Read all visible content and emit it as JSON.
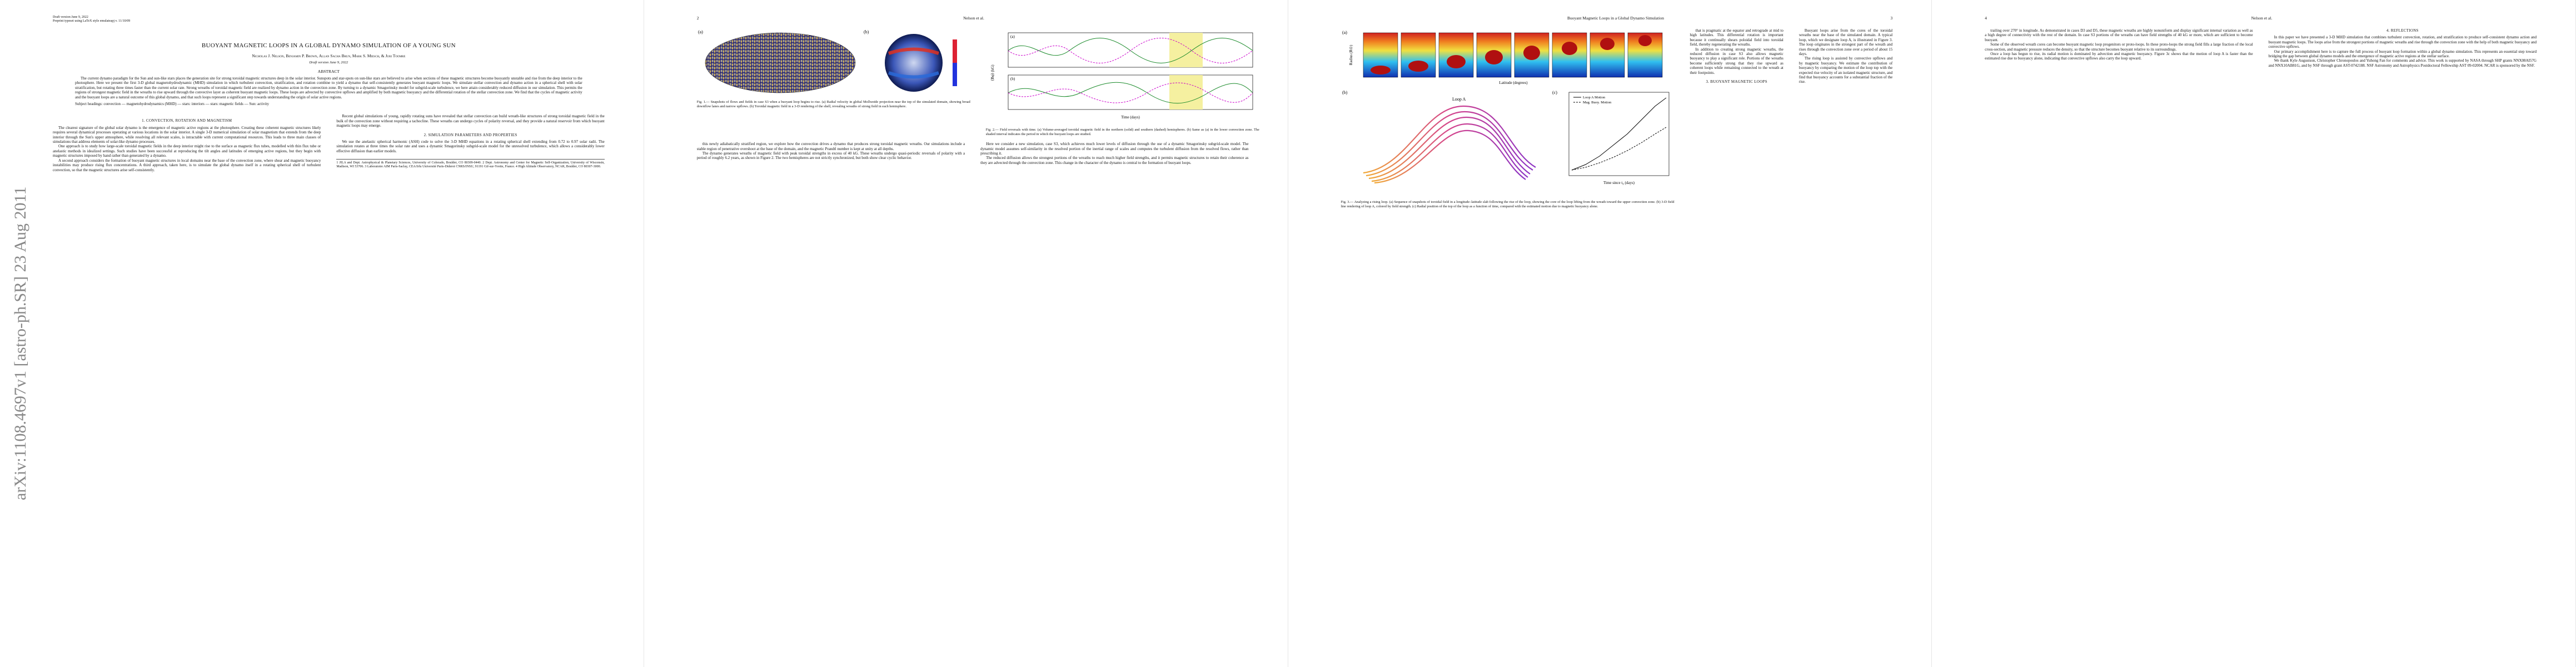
{
  "arxiv_stamp": "arXiv:1108.4697v1  [astro-ph.SR]  23 Aug 2011",
  "page1": {
    "draft_line": "Draft version June 9, 2022",
    "preprint_line": "Preprint typeset using LaTeX style emulateapj v. 11/10/09",
    "title": "BUOYANT MAGNETIC LOOPS IN A GLOBAL DYNAMO SIMULATION OF A YOUNG SUN",
    "authors": "Nicholas J. Nelson, Benjamin P. Brown, Allan Sacha Brun, Mark S. Miesch, & Juri Toomre",
    "date": "Draft version June 9, 2022",
    "abstract_heading": "ABSTRACT",
    "abstract": "The current dynamo paradigm for the Sun and sun-like stars places the generation site for strong toroidal magnetic structures deep in the solar interior. Sunspots and star-spots on sun-like stars are believed to arise when sections of these magnetic structures become buoyantly unstable and rise from the deep interior to the photosphere. Here we present the first 3-D global magnetohydrodynamic (MHD) simulation in which turbulent convection, stratification, and rotation combine to yield a dynamo that self-consistently generates buoyant magnetic loops. We simulate stellar convection and dynamo action in a spherical shell with solar stratification, but rotating three times faster than the current solar rate. Strong wreaths of toroidal magnetic field are realized by dynamo action in the convection zone. By turning to a dynamic Smagorinsky model for subgrid-scale turbulence, we here attain considerably reduced diffusion in our simulation. This permits the regions of strongest magnetic field in the wreaths to rise upward through the convective layer as coherent buoyant magnetic loops. These loops are advected by convective upflows and amplified by both magnetic buoyancy and the differential rotation of the stellar convection zone. We find that the cycles of magnetic activity and the buoyant loops are a natural outcome of this global dynamo, and that such loops represent a significant step towards understanding the origin of solar active regions.",
    "keywords": "Subject headings: convection — magnetohydrodynamics (MHD) — stars: interiors — stars: magnetic fields — Sun: activity",
    "body": [
      {
        "heading": "1. CONVECTION, ROTATION AND MAGNETISM"
      },
      {
        "text": "The clearest signature of the global solar dynamo is the emergence of magnetic active regions at the photosphere. Creating these coherent magnetic structures likely requires several dynamical processes operating at various locations in the solar interior. A single 3-D numerical simulation of solar magnetism that extends from the deep interior through the Sun's upper atmosphere, while resolving all relevant scales, is intractable with current computational resources. This leads to three main classes of simulations that address elements of solar-like dynamo processes."
      },
      {
        "text": "One approach is to study how large-scale toroidal magnetic fields in the deep interior might rise to the surface as magnetic flux tubes, modelled with thin flux tube or anelastic methods in idealized settings. Such studies have been successful at reproducing the tilt angles and latitudes of emerging active regions, but they begin with magnetic structures imposed by hand rather than generated by a dynamo."
      },
      {
        "text": "A second approach considers the formation of buoyant magnetic structures in local domains near the base of the convection zone, where shear and magnetic buoyancy instabilities may produce rising flux concentrations. A third approach, taken here, is to simulate the global dynamo itself in a rotating spherical shell of turbulent convection, so that the magnetic structures arise self-consistently."
      },
      {
        "text": "Recent global simulations of young, rapidly rotating suns have revealed that stellar convection can build wreath-like structures of strong toroidal magnetic field in the bulk of the convection zone without requiring a tachocline. These wreaths can undergo cycles of polarity reversal, and they provide a natural reservoir from which buoyant magnetic loops may emerge."
      },
      {
        "heading": "2. SIMULATION PARAMETERS AND PROPERTIES"
      },
      {
        "text": "We use the anelastic spherical harmonic (ASH) code to solve the 3-D MHD equations in a rotating spherical shell extending from 0.72 to 0.97 solar radii. The simulation rotates at three times the solar rate and uses a dynamic Smagorinsky subgrid-scale model for the unresolved turbulence, which allows a considerably lower effective diffusion than earlier models."
      },
      {
        "footnote": "1 JILA and Dept. Astrophysical & Planetary Sciences, University of Colorado, Boulder, CO 80309-0440. 2 Dept. Astronomy and Center for Magnetic Self-Organization, University of Wisconsin, Madison, WI 53706. 3 Laboratoire AIM Paris-Saclay, CEA/Irfu Université Paris-Diderot CNRS/INSU, 91191 Gif-sur-Yvette, France. 4 High Altitude Observatory, NCAR, Boulder, CO 80307-3000."
      }
    ]
  },
  "page2": {
    "page_number": "2",
    "running_head": "Nelson et al.",
    "fig1_a": "(a)",
    "fig1_b": "(b)",
    "fig1_caption": "Fig. 1.— Snapshots of flows and fields in case S3 when a buoyant loop begins to rise. (a) Radial velocity in global Mollweide projection near the top of the simulated domain, showing broad downflow lanes and narrow upflows. (b) Toroidal magnetic field in a 3-D rendering of the shell, revealing wreaths of strong field in each hemisphere.",
    "fig2_a": "(a)",
    "fig2_b": "(b)",
    "fig2_ylabel": "⟨Bφ⟩ (kG)",
    "fig2_xlabel": "Time (days)",
    "fig2_caption": "Fig. 2.— Field reversals with time. (a) Volume-averaged toroidal magnetic field in the northern (solid) and southern (dashed) hemispheres. (b) Same as (a) in the lower convection zone. The shaded interval indicates the period in which the buoyant loops are studied.",
    "body": [
      {
        "text": "this newly adiabatically stratified region, we explore how the convection drives a dynamo that produces strong toroidal magnetic wreaths. Our simulations include a stable region of penetrative overshoot at the base of the domain, and the magnetic Prandtl number is kept at unity at all depths."
      },
      {
        "text": "The dynamo generates wreaths of magnetic field with peak toroidal strengths in excess of 40 kG. These wreaths undergo quasi-periodic reversals of polarity with a period of roughly 6.2 years, as shown in Figure 2. The two hemispheres are not strictly synchronized, but both show clear cyclic behavior."
      },
      {
        "text": "Here we consider a new simulation, case S3, which achieves much lower levels of diffusion through the use of a dynamic Smagorinsky subgrid-scale model. The dynamic model assumes self-similarity in the resolved portion of the inertial range of scales and computes the turbulent diffusion from the resolved flows, rather than prescribing it."
      },
      {
        "text": "The reduced diffusion allows the strongest portions of the wreaths to reach much higher field strengths, and it permits magnetic structures to retain their coherence as they are advected through the convection zone. This change in the character of the dynamo is central to the formation of buoyant loops."
      }
    ]
  },
  "page3": {
    "page_number": "3",
    "running_head": "Buoyant Magnetic Loops in a Global Dynamo Simulation",
    "fig3_a": "(a)",
    "fig3_b": "(b)",
    "fig3_c": "(c)",
    "fig3_ylabel": "Radius (R⊙)",
    "fig3_xlabel": "Time since t₀ (days)",
    "fig3_latitude": "Latitude (degrees)",
    "fig3_loop": "Loop A",
    "legend": [
      "Loop A Motion",
      "Mag. Buoy. Motion"
    ],
    "fig3_caption": "Fig. 3.— Analyzing a rising loop. (a) Sequence of snapshots of toroidal field in a longitude–latitude slab following the rise of the loop, showing the core of the loop lifting from the wreath toward the upper convection zone. (b) 3-D field line rendering of loop A, colored by field strength. (c) Radial position of the top of the loop as a function of time, compared with the estimated motion due to magnetic buoyancy alone.",
    "body": [
      {
        "text": "that is pragmatic at the equator and retrograde at mid to high latitudes. This differential rotation is important because it continually shears poloidal field into toroidal field, thereby regenerating the wreaths."
      },
      {
        "text": "In addition to creating strong magnetic wreaths, the reduced diffusion in case S3 also allows magnetic buoyancy to play a significant role. Portions of the wreaths become sufficiently strong that they rise upward as coherent loops while remaining connected to the wreath at their footpoints."
      },
      {
        "heading": "3. BUOYANT MAGNETIC LOOPS"
      },
      {
        "text": "Buoyant loops arise from the cores of the toroidal wreaths near the base of the simulated domain. A typical loop, which we designate loop A, is illustrated in Figure 3. The loop originates in the strongest part of the wreath and rises through the convection zone over a period of about 15 days."
      },
      {
        "text": "The rising loop is assisted by convective upflows and by magnetic buoyancy. We estimate the contribution of buoyancy by comparing the motion of the loop top with the expected rise velocity of an isolated magnetic structure, and find that buoyancy accounts for a substantial fraction of the rise."
      }
    ]
  },
  "page4": {
    "page_number": "4",
    "running_head": "Nelson et al.",
    "body": [
      {
        "text": "trailing over 270° in longitude. As demonstrated in cases D3 and D5, these magnetic wreaths are highly nonuniform and display significant internal variation as well as a high degree of connectivity with the rest of the domain. In case S3 portions of the wreaths can have field strengths of 40 kG or more, which are sufficient to become buoyant."
      },
      {
        "text": "Some of the observed wreath cores can become buoyant magnetic loop progenitors or proto-loops. In these proto-loops the strong field fills a large fraction of the local cross-section, and magnetic pressure reduces the density, so that the structure becomes buoyant relative to its surroundings."
      },
      {
        "text": "Once a loop has begun to rise, its radial motion is dominated by advection and magnetic buoyancy. Figure 3c shows that the motion of loop A is faster than the estimated rise due to buoyancy alone, indicating that convective upflows also carry the loop upward."
      },
      {
        "heading": "4. REFLECTIONS"
      },
      {
        "text": "In this paper we have presented a 3-D MHD simulation that combines turbulent convection, rotation, and stratification to produce self-consistent dynamo action and buoyant magnetic loops. The loops arise from the strongest portions of magnetic wreaths and rise through the convection zone with the help of both magnetic buoyancy and convective upflows."
      },
      {
        "text": "Our primary accomplishment here is to capture the full process of buoyant loop formation within a global dynamo simulation. This represents an essential step toward bridging the gap between global dynamo models and the emergence of magnetic active regions at the stellar surface."
      },
      {
        "text": "We thank Kyle Augustson, Christopher Chronopoulos and Yuhong Fan for comments and advice. This work is supported by NASA through SHP grants NNX08AI57G and NNX10AB81G, and by NSF through grant AST-0742188. NSF Astronomy and Astrophysics Postdoctoral Fellowship AST 09-02004. NCAR is sponsored by the NSF."
      }
    ]
  }
}
